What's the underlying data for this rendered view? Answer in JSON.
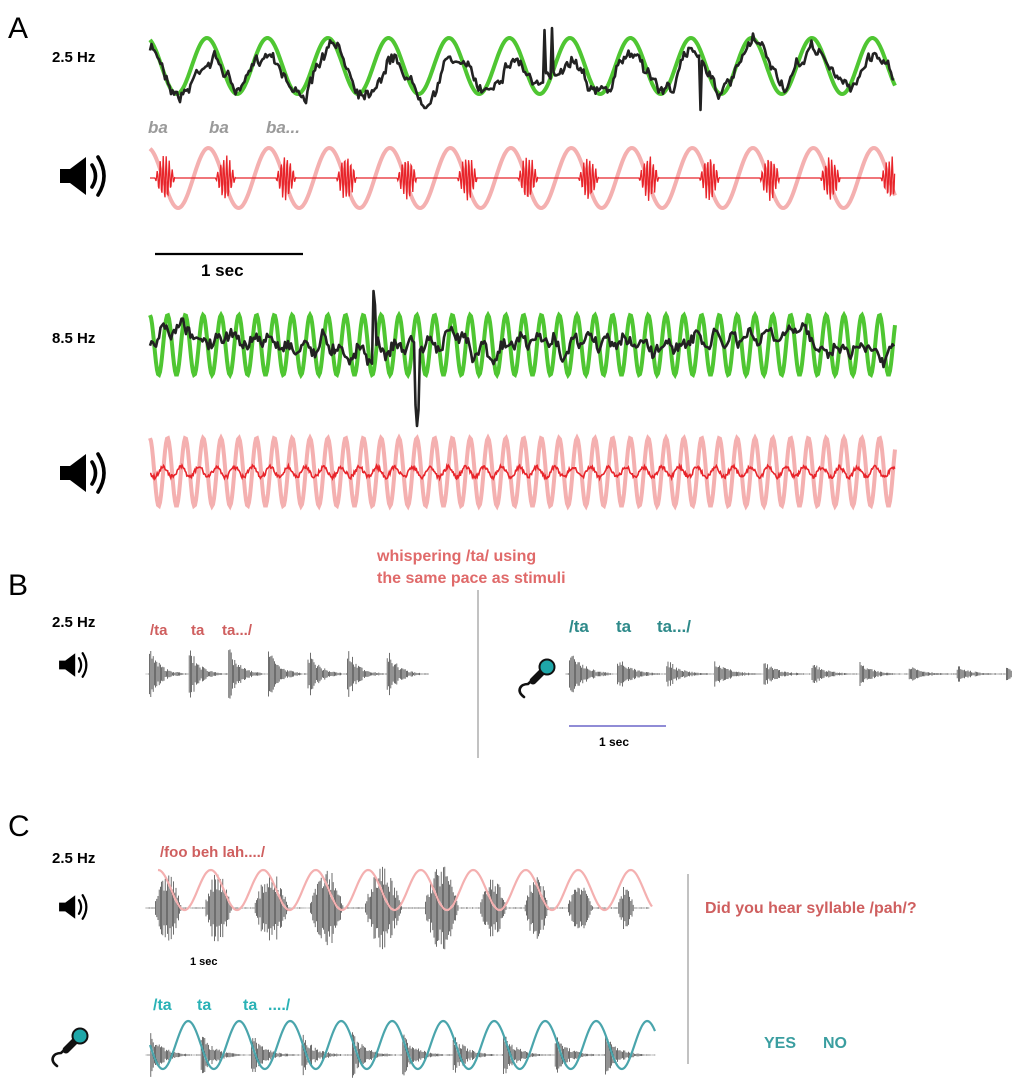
{
  "panel_a": {
    "letter": "A",
    "rate_1": "2.5 Hz",
    "syllables": [
      "ba",
      "ba",
      "ba..."
    ],
    "scale_label": "1 sec",
    "rate_2": "8.5 Hz"
  },
  "panel_b": {
    "letter": "B",
    "note_line1": "whispering /ta/ using",
    "note_line2": "the same pace as stimuli",
    "rate": "2.5 Hz",
    "stim_syllables": [
      "/ta",
      "ta",
      "ta.../"
    ],
    "resp_syllables": [
      "/ta",
      "ta",
      "ta.../"
    ],
    "scale_label": "1 sec"
  },
  "panel_c": {
    "letter": "C",
    "rate": "2.5 Hz",
    "stim_syllables": "/foo beh  lah..../",
    "scale_label": "1 sec",
    "resp_syllables": [
      "/ta",
      "ta",
      "ta",
      "..../"
    ],
    "question": "Did you hear syllable /pah/?",
    "answer_yes": "YES",
    "answer_no": "NO"
  },
  "colors": {
    "eeg_green": "#4fc632",
    "eeg_trace": "#222222",
    "envelope_pink": "#f4b0b0",
    "stimulus_red": "#e8242a",
    "waveform_gray": "#4a4a4a",
    "teal_wave": "#4aa5ac",
    "teal_icon": "#1ea7a9",
    "scale_blue": "#6b67c8",
    "divider_gray": "#9a9a9a"
  },
  "icons": [
    "speaker-icon",
    "microphone-icon"
  ]
}
